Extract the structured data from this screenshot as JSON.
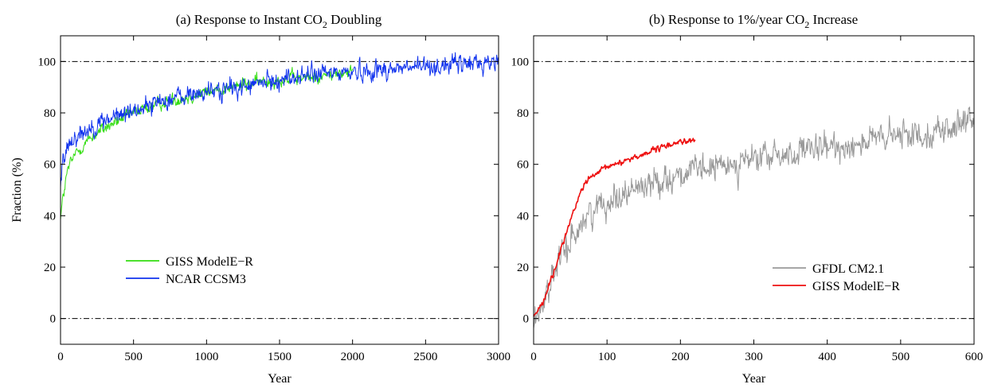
{
  "chart_data": [
    {
      "type": "line",
      "title": "(a)  Response to Instant CO2 Doubling",
      "xlabel": "Year",
      "ylabel": "Fraction (%)",
      "xlim": [
        0,
        3000
      ],
      "ylim": [
        -10,
        110
      ],
      "xticks": [
        "0",
        "500",
        "1000",
        "1500",
        "2000",
        "2500",
        "3000"
      ],
      "yticks": [
        "0",
        "20",
        "40",
        "60",
        "80",
        "100"
      ],
      "reference_lines": [
        0,
        100
      ],
      "legend_position": "lower-left",
      "series": [
        {
          "name": "GISS ModelE−R",
          "color": "#33dd11",
          "x": [
            0,
            20,
            50,
            100,
            200,
            300,
            500,
            700,
            1000,
            1250,
            1500,
            1750,
            2000
          ],
          "y": [
            40,
            48,
            58,
            64,
            70,
            74,
            80,
            84,
            88,
            91,
            93,
            94,
            96
          ],
          "noise": 3
        },
        {
          "name": "NCAR CCSM3",
          "color": "#1133ee",
          "x": [
            0,
            20,
            50,
            100,
            200,
            300,
            500,
            700,
            1000,
            1250,
            1500,
            1750,
            2000,
            2250,
            2500,
            2750,
            3000
          ],
          "y": [
            52,
            62,
            68,
            71,
            74,
            77,
            81,
            85,
            88,
            90,
            93,
            95,
            96,
            97,
            98,
            99,
            100
          ],
          "noise": 4.5
        }
      ]
    },
    {
      "type": "line",
      "title": "(b)  Response to 1%/year CO2 Increase",
      "xlabel": "Year",
      "ylabel": "",
      "xlim": [
        0,
        600
      ],
      "ylim": [
        -10,
        110
      ],
      "xticks": [
        "0",
        "100",
        "200",
        "300",
        "400",
        "500",
        "600"
      ],
      "yticks": [
        "0",
        "20",
        "40",
        "60",
        "80",
        "100"
      ],
      "reference_lines": [
        0,
        100
      ],
      "legend_position": "lower-right",
      "series": [
        {
          "name": "GFDL CM2.1",
          "color": "#999999",
          "x": [
            0,
            10,
            20,
            40,
            60,
            80,
            100,
            150,
            200,
            250,
            300,
            350,
            400,
            450,
            500,
            550,
            600
          ],
          "y": [
            -2,
            5,
            12,
            25,
            35,
            42,
            46,
            52,
            56,
            59,
            62,
            64,
            66,
            69,
            71,
            73,
            76
          ],
          "noise": 6.5
        },
        {
          "name": "GISS ModelE−R",
          "color": "#ee1111",
          "x": [
            0,
            10,
            20,
            30,
            40,
            50,
            60,
            70,
            80,
            100,
            120,
            150,
            180,
            200,
            220
          ],
          "y": [
            1,
            5,
            12,
            20,
            30,
            38,
            46,
            53,
            55,
            59,
            61,
            64,
            67,
            69,
            69
          ],
          "noise": 1.3
        }
      ]
    }
  ]
}
